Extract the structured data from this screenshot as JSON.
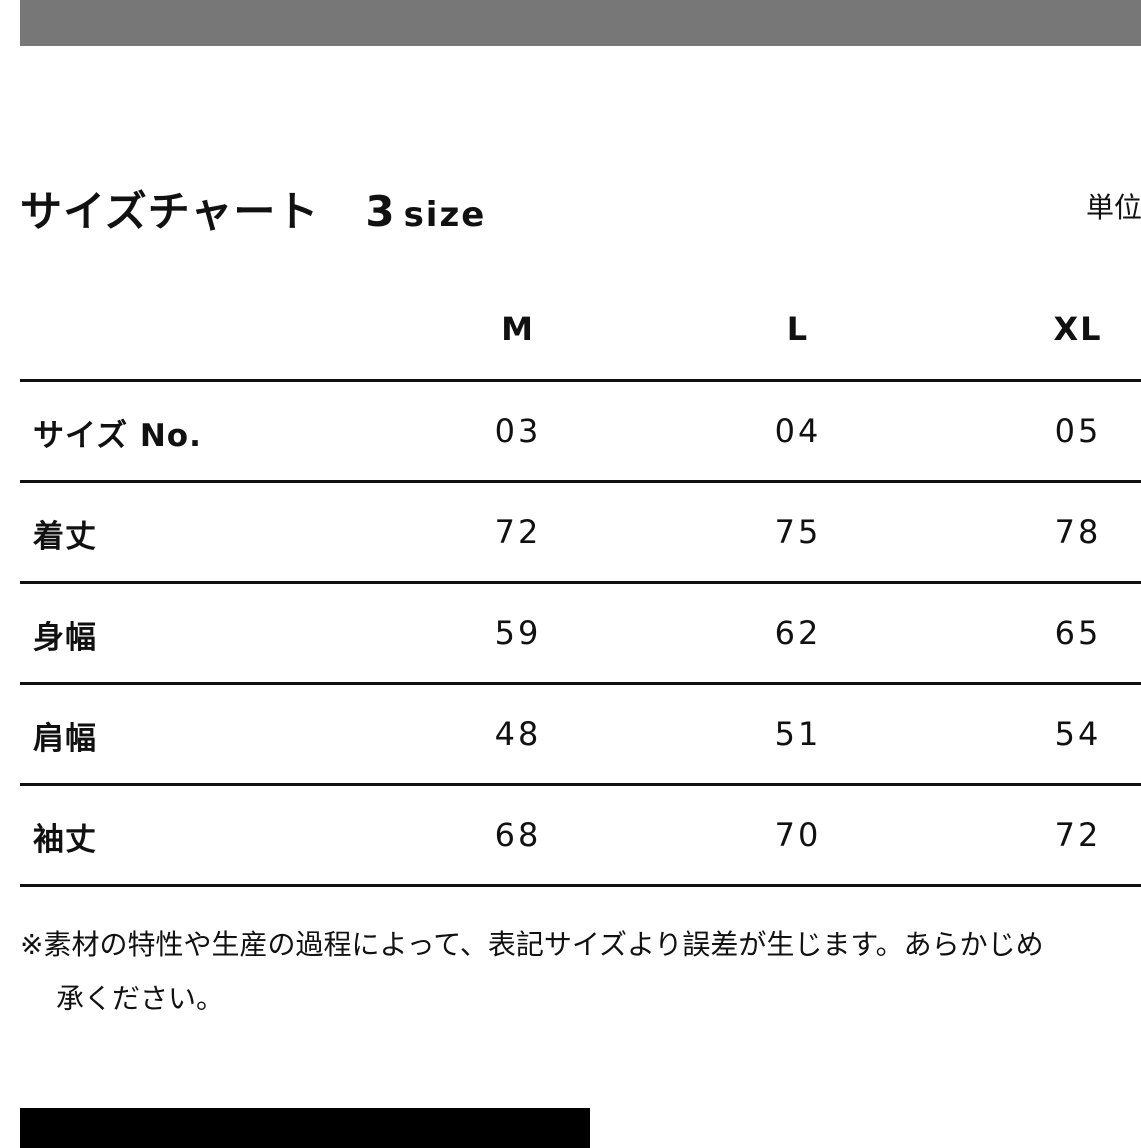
{
  "title": {
    "text": "サイズチャート",
    "count": "3",
    "count_unit": "size"
  },
  "unit_label": "単位",
  "columns": [
    "M",
    "L",
    "XL"
  ],
  "rows": [
    {
      "label": "サイズ No.",
      "values": [
        "03",
        "04",
        "05"
      ]
    },
    {
      "label": "着丈",
      "values": [
        "72",
        "75",
        "78"
      ]
    },
    {
      "label": "身幅",
      "values": [
        "59",
        "62",
        "65"
      ]
    },
    {
      "label": "肩幅",
      "values": [
        "48",
        "51",
        "54"
      ]
    },
    {
      "label": "袖丈",
      "values": [
        "68",
        "70",
        "72"
      ]
    }
  ],
  "note": {
    "line1": "※素材の特性や生産の過程によって、表記サイズより誤差が生じます。あらかじめ",
    "line2": "承ください。"
  },
  "colors": {
    "topbar": "#777777",
    "text": "#111111"
  }
}
